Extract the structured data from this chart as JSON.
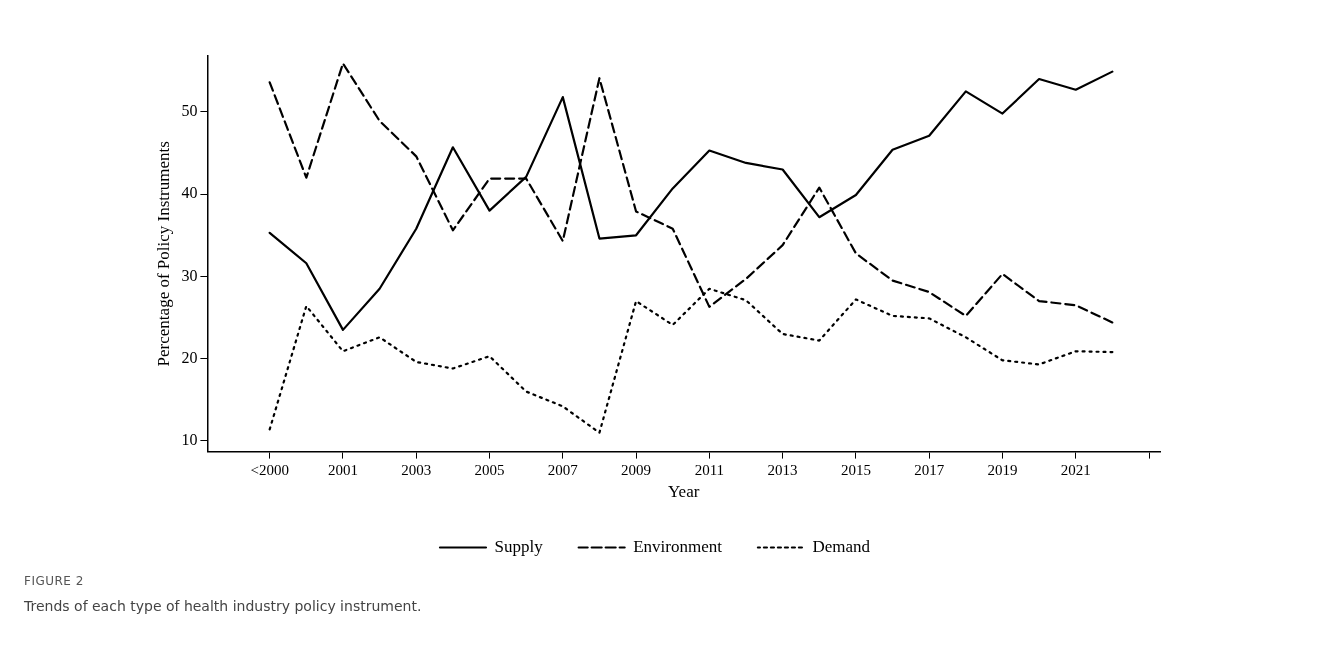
{
  "chart_data": {
    "type": "line",
    "xlabel": "Year",
    "ylabel": "Percentage of Policy Instruments",
    "categories": [
      "<2000",
      null,
      "2001",
      null,
      "2003",
      null,
      "2005",
      null,
      "2007",
      null,
      "2009",
      null,
      "2011",
      null,
      "2013",
      null,
      "2015",
      null,
      "2017",
      null,
      "2019",
      null,
      "2021",
      null,
      null
    ],
    "series": [
      {
        "name": "Supply",
        "color": "#000000",
        "line_style": "solid",
        "values": [
          35.3,
          31.6,
          23.5,
          28.5,
          35.8,
          45.7,
          38.0,
          42.1,
          51.8,
          34.6,
          35.0,
          40.7,
          45.3,
          43.8,
          43.0,
          37.2,
          39.9,
          45.4,
          47.1,
          52.5,
          49.8,
          54.0,
          52.7,
          54.9,
          null
        ]
      },
      {
        "name": "Environment",
        "color": "#000000",
        "line_style": "dashed",
        "values": [
          53.6,
          42.0,
          55.9,
          48.9,
          44.6,
          35.6,
          41.9,
          41.9,
          34.3,
          54.1,
          37.9,
          35.8,
          26.3,
          29.7,
          33.8,
          40.8,
          32.8,
          29.5,
          28.1,
          25.2,
          30.3,
          27.0,
          26.5,
          24.4,
          null
        ]
      },
      {
        "name": "Demand",
        "color": "#000000",
        "line_style": "dotted",
        "values": [
          11.4,
          26.4,
          20.9,
          22.6,
          19.6,
          18.8,
          20.3,
          16.0,
          14.2,
          11.0,
          27.0,
          24.1,
          28.5,
          27.1,
          23.0,
          22.2,
          27.2,
          25.2,
          24.9,
          22.6,
          19.8,
          19.3,
          20.9,
          20.8,
          null
        ]
      }
    ],
    "ylim": [
      8.7,
      56.8
    ],
    "yticks": [
      10,
      20,
      30,
      40,
      50
    ],
    "grid": false,
    "legend": "bottom",
    "marker": "none",
    "annotations": [
      "FIGURE 2",
      "Trends of each type of health industry policy instrument."
    ]
  }
}
